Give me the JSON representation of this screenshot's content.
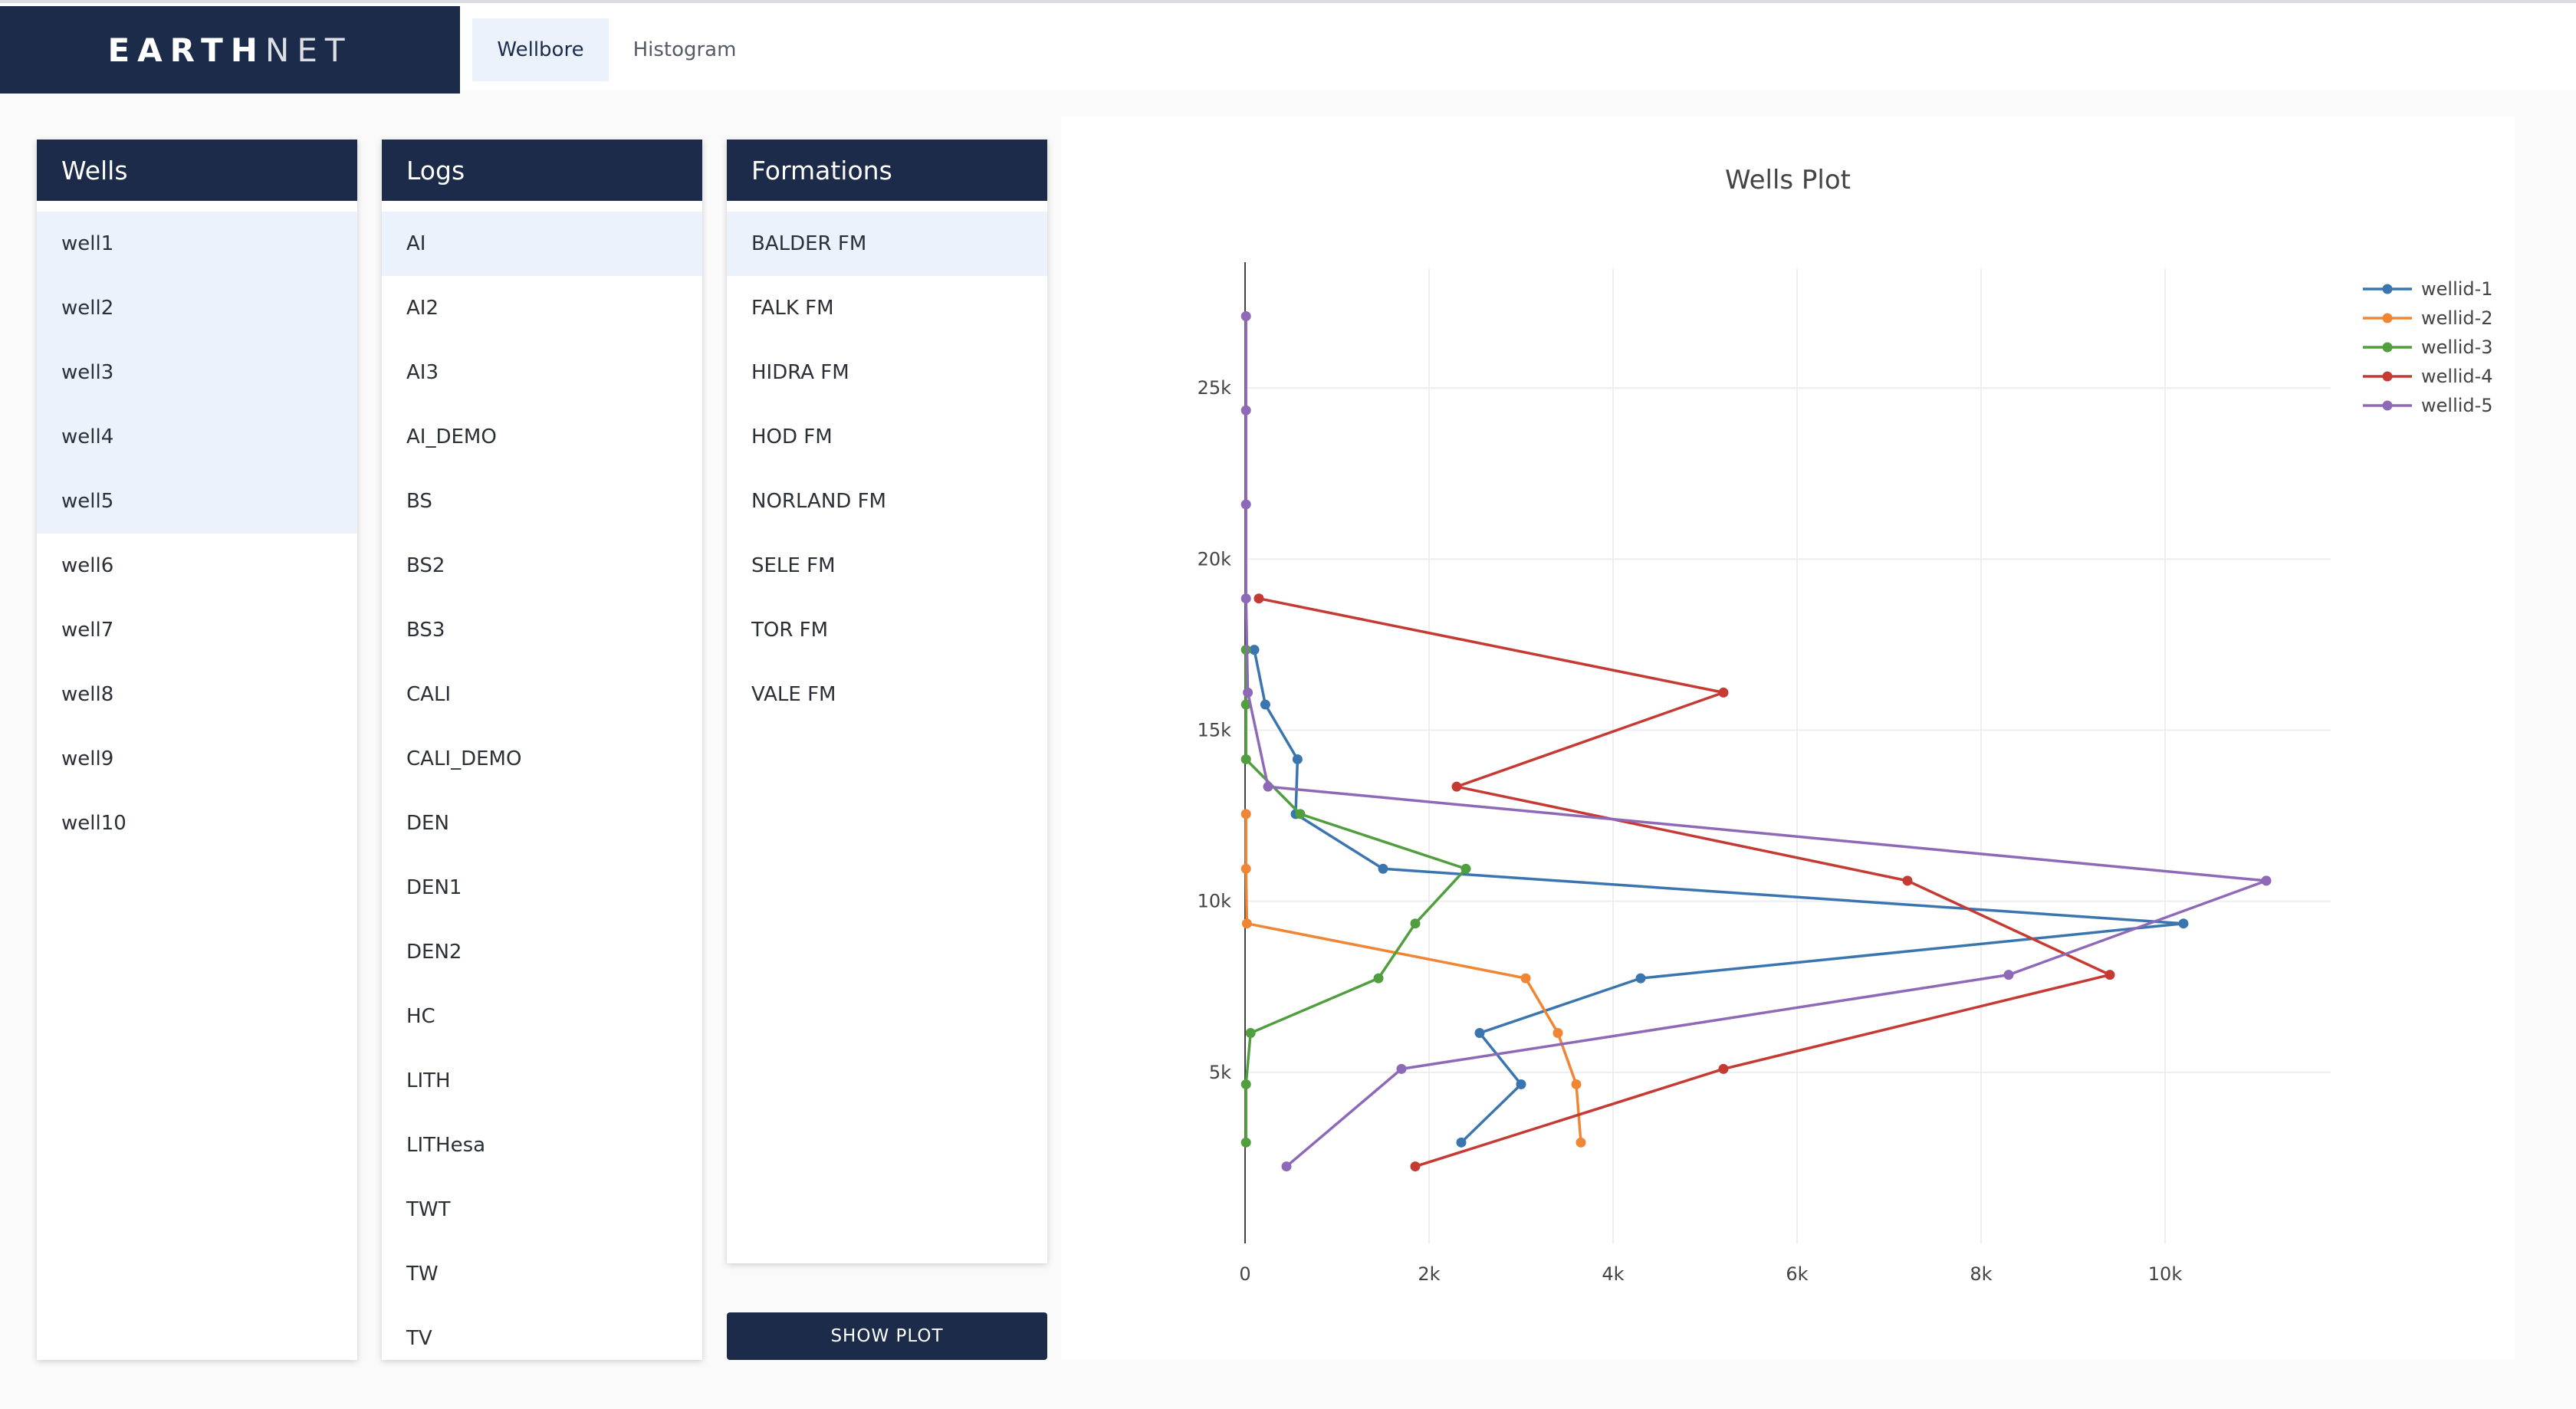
{
  "app": {
    "logo_strong": "EARTH",
    "logo_light": "NET",
    "tabs": [
      "Wellbore",
      "Histogram"
    ]
  },
  "wells": {
    "title": "Wells",
    "items": [
      "well1",
      "well2",
      "well3",
      "well4",
      "well5",
      "well6",
      "well7",
      "well8",
      "well9",
      "well10"
    ],
    "selected": [
      "well1",
      "well2",
      "well3",
      "well4",
      "well5"
    ]
  },
  "logs": {
    "title": "Logs",
    "items": [
      "AI",
      "AI2",
      "AI3",
      "AI_DEMO",
      "BS",
      "BS2",
      "BS3",
      "CALI",
      "CALI_DEMO",
      "DEN",
      "DEN1",
      "DEN2",
      "HC",
      "LITH",
      "LITHesa",
      "TWT",
      "TW",
      "TV"
    ],
    "selected": [
      "AI"
    ]
  },
  "formations": {
    "title": "Formations",
    "items": [
      "BALDER FM",
      "FALK FM",
      "HIDRA FM",
      "HOD FM",
      "NORLAND FM",
      "SELE FM",
      "TOR FM",
      "VALE FM"
    ],
    "selected": [
      "BALDER FM"
    ]
  },
  "show_plot_label": "SHOW PLOT",
  "colors": {
    "navy": "#1c2b4a",
    "selected_row": "#ecf2fc"
  },
  "chart_data": {
    "type": "line",
    "title": "Wells Plot",
    "xlabel": "",
    "ylabel": "",
    "xlim": [
      0,
      11800
    ],
    "ylim": [
      0,
      28500
    ],
    "x_ticks": [
      0,
      2000,
      4000,
      6000,
      8000,
      10000
    ],
    "x_tick_labels": [
      "0",
      "2k",
      "4k",
      "6k",
      "8k",
      "10k"
    ],
    "y_ticks": [
      5000,
      10000,
      15000,
      20000,
      25000
    ],
    "y_tick_labels": [
      "5k",
      "10k",
      "15k",
      "20k",
      "25k"
    ],
    "grid": true,
    "legend_position": "top-right",
    "series": [
      {
        "name": "wellid-1",
        "color": "#3b75af",
        "points": [
          [
            2350,
            2950
          ],
          [
            3000,
            4650
          ],
          [
            2550,
            6150
          ],
          [
            4300,
            7750
          ],
          [
            10200,
            9350
          ],
          [
            1500,
            10950
          ],
          [
            550,
            12550
          ],
          [
            570,
            14150
          ],
          [
            220,
            15750
          ],
          [
            100,
            17350
          ]
        ]
      },
      {
        "name": "wellid-2",
        "color": "#ef8636",
        "points": [
          [
            3650,
            2950
          ],
          [
            3600,
            4650
          ],
          [
            3400,
            6150
          ],
          [
            3050,
            7750
          ],
          [
            20,
            9350
          ],
          [
            10,
            10950
          ],
          [
            10,
            12550
          ]
        ]
      },
      {
        "name": "wellid-3",
        "color": "#519e3e",
        "points": [
          [
            10,
            2950
          ],
          [
            10,
            4650
          ],
          [
            60,
            6150
          ],
          [
            1450,
            7750
          ],
          [
            1850,
            9350
          ],
          [
            2400,
            10950
          ],
          [
            600,
            12550
          ],
          [
            10,
            14150
          ],
          [
            10,
            15750
          ],
          [
            10,
            17350
          ]
        ]
      },
      {
        "name": "wellid-4",
        "color": "#c53a32",
        "points": [
          [
            1850,
            2250
          ],
          [
            5200,
            5100
          ],
          [
            9400,
            7850
          ],
          [
            7200,
            10600
          ],
          [
            2300,
            13350
          ],
          [
            5200,
            16100
          ],
          [
            150,
            18850
          ]
        ]
      },
      {
        "name": "wellid-5",
        "color": "#8d69b8",
        "points": [
          [
            450,
            2250
          ],
          [
            1700,
            5100
          ],
          [
            8300,
            7850
          ],
          [
            11100,
            10600
          ],
          [
            250,
            13350
          ],
          [
            30,
            16100
          ],
          [
            10,
            18850
          ],
          [
            10,
            21600
          ],
          [
            10,
            24350
          ],
          [
            10,
            27100
          ]
        ]
      }
    ]
  }
}
